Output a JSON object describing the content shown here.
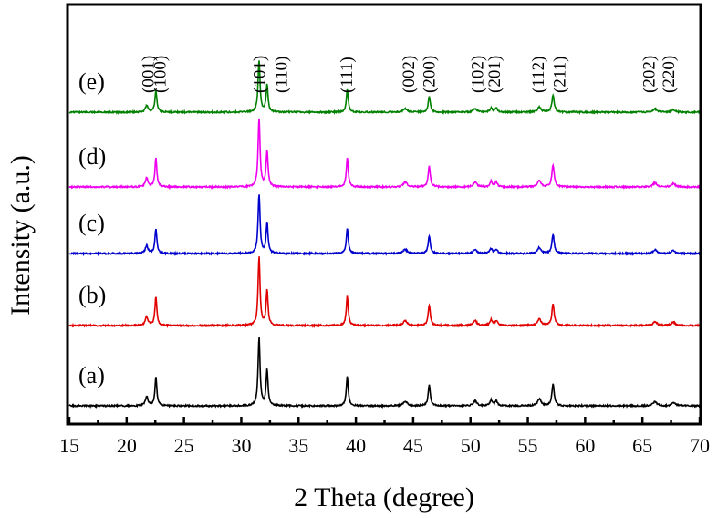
{
  "chart_data": {
    "type": "line",
    "title": "",
    "xlabel": "2 Theta (degree)",
    "ylabel": "Intensity (a.u.)",
    "xlim": [
      15,
      70
    ],
    "xticks": [
      "15",
      "20",
      "25",
      "30",
      "35",
      "40",
      "45",
      "50",
      "55",
      "60",
      "65",
      "70"
    ],
    "grid": false,
    "peak_labels": [
      {
        "text": "(001)",
        "two_theta": 21.9
      },
      {
        "text": "(100)",
        "two_theta": 22.9
      },
      {
        "text": "(101)",
        "two_theta": 31.6
      },
      {
        "text": "(110)",
        "two_theta": 33.5
      },
      {
        "text": "(111)",
        "two_theta": 39.2
      },
      {
        "text": "(002)",
        "two_theta": 44.6
      },
      {
        "text": "(200)",
        "two_theta": 46.4
      },
      {
        "text": "(102)",
        "two_theta": 50.6
      },
      {
        "text": "(201)",
        "two_theta": 52.1
      },
      {
        "text": "(112)",
        "two_theta": 55.9
      },
      {
        "text": "(211)",
        "two_theta": 57.8
      },
      {
        "text": "(202)",
        "two_theta": 65.6
      },
      {
        "text": "(220)",
        "two_theta": 67.3
      }
    ],
    "peaks": [
      {
        "two_theta": 21.75,
        "rel": 0.13,
        "width": 0.14
      },
      {
        "two_theta": 22.55,
        "rel": 0.42,
        "width": 0.1
      },
      {
        "two_theta": 31.55,
        "rel": 1.0,
        "width": 0.1
      },
      {
        "two_theta": 32.25,
        "rel": 0.52,
        "width": 0.1
      },
      {
        "two_theta": 39.25,
        "rel": 0.43,
        "width": 0.1
      },
      {
        "two_theta": 44.3,
        "rel": 0.07,
        "width": 0.2
      },
      {
        "two_theta": 46.4,
        "rel": 0.3,
        "width": 0.11
      },
      {
        "two_theta": 50.4,
        "rel": 0.07,
        "width": 0.18
      },
      {
        "two_theta": 51.8,
        "rel": 0.08,
        "width": 0.13
      },
      {
        "two_theta": 52.25,
        "rel": 0.07,
        "width": 0.13
      },
      {
        "two_theta": 56.0,
        "rel": 0.1,
        "width": 0.18
      },
      {
        "two_theta": 57.2,
        "rel": 0.32,
        "width": 0.12
      },
      {
        "two_theta": 66.1,
        "rel": 0.06,
        "width": 0.2
      },
      {
        "two_theta": 67.7,
        "rel": 0.05,
        "width": 0.18
      }
    ],
    "series": [
      {
        "name": "(a)",
        "color": "#000000",
        "offset": 0,
        "scale": 75
      },
      {
        "name": "(b)",
        "color": "#e00000",
        "offset": 88,
        "scale": 75
      },
      {
        "name": "(c)",
        "color": "#0000cc",
        "offset": 167,
        "scale": 65
      },
      {
        "name": "(d)",
        "color": "#ee00ee",
        "offset": 240,
        "scale": 75
      },
      {
        "name": "(e)",
        "color": "#008000",
        "offset": 322,
        "scale": 57
      }
    ]
  }
}
